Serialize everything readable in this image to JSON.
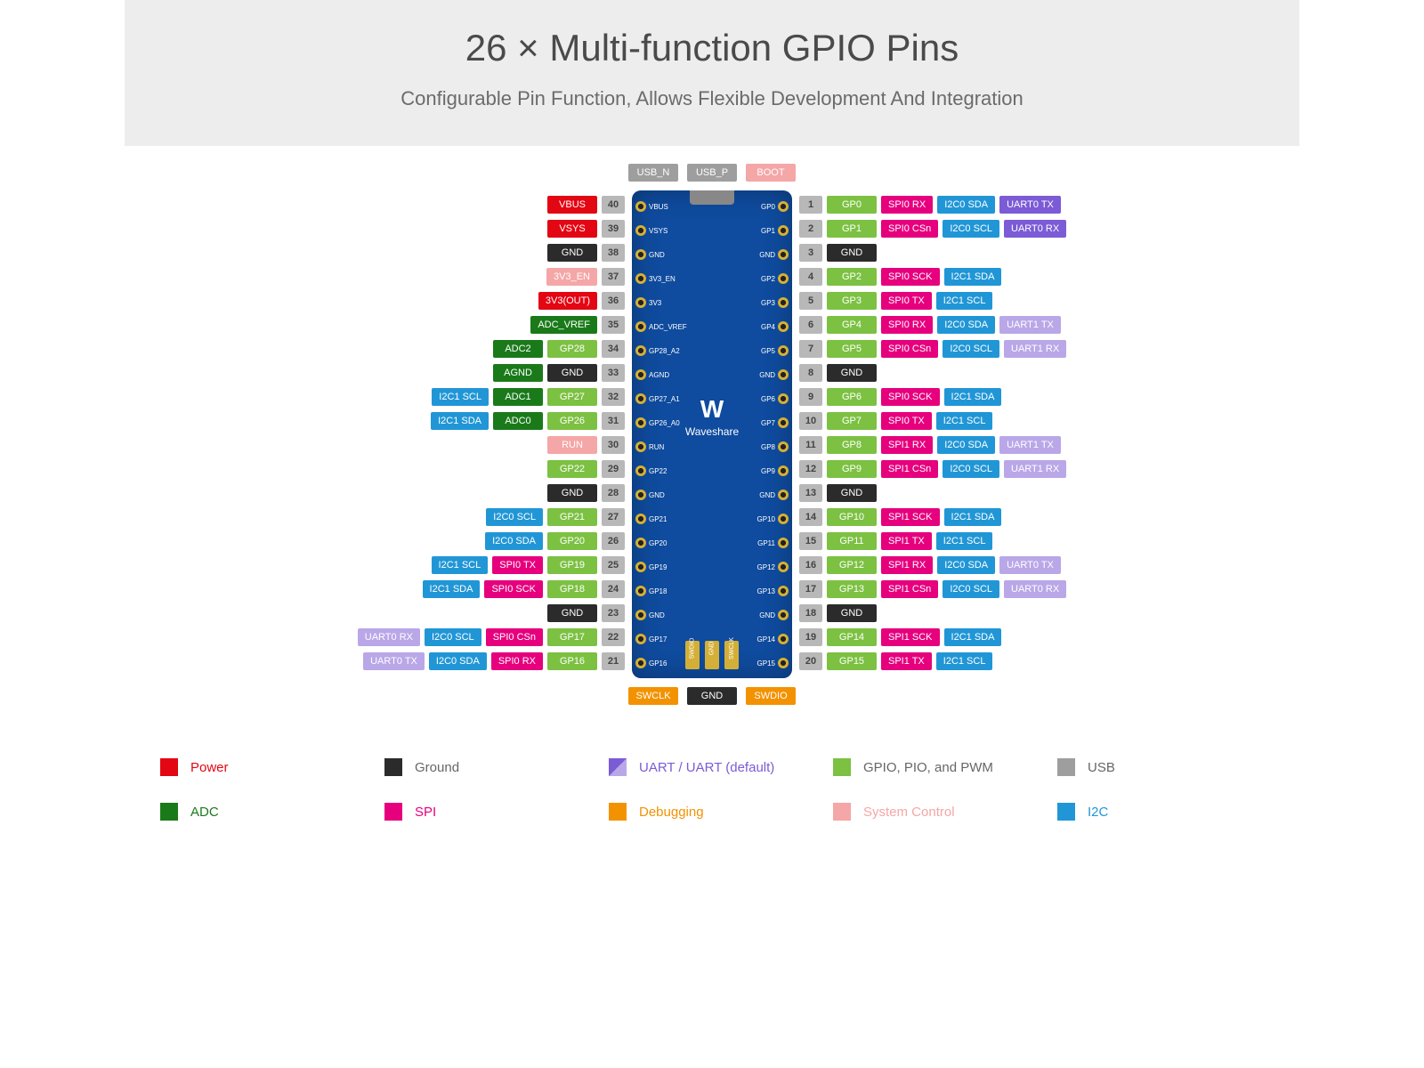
{
  "header": {
    "title": "26 × Multi-function GPIO Pins",
    "subtitle": "Configurable Pin Function, Allows Flexible Development And Integration"
  },
  "colors": {
    "power": "#e30613",
    "ground": "#2b2b2b",
    "uart": "#7b5bd6",
    "uart_default": "#b9a7e8",
    "gpio": "#7cc142",
    "usb": "#9e9e9e",
    "adc": "#1a7a1a",
    "spi": "#e6007e",
    "debugging": "#f39200",
    "system_control": "#f5a6a6",
    "i2c": "#2196d6",
    "pin_bg": "#b8b8b8",
    "board": "#0f4b9e"
  },
  "top_labels": [
    {
      "text": "USB_N",
      "color_key": "usb"
    },
    {
      "text": "USB_P",
      "color_key": "usb"
    },
    {
      "text": "BOOT",
      "color_key": "system_control"
    }
  ],
  "bottom_labels": [
    {
      "text": "SWCLK",
      "color_key": "debugging"
    },
    {
      "text": "GND",
      "color_key": "ground"
    },
    {
      "text": "SWDIO",
      "color_key": "debugging"
    }
  ],
  "board_labels": {
    "left": [
      "VBUS",
      "VSYS",
      "GND",
      "3V3_EN",
      "3V3",
      "ADC_VREF",
      "GP28_A2",
      "AGND",
      "GP27_A1",
      "GP26_A0",
      "RUN",
      "GP22",
      "GND",
      "GP21",
      "GP20",
      "GP19",
      "GP18",
      "GND",
      "GP17",
      "GP16"
    ],
    "right": [
      "GP0",
      "GP1",
      "GND",
      "GP2",
      "GP3",
      "GP4",
      "GP5",
      "GND",
      "GP6",
      "GP7",
      "GP8",
      "GP9",
      "GND",
      "GP10",
      "GP11",
      "GP12",
      "GP13",
      "GND",
      "GP14",
      "GP15"
    ],
    "logo": "W",
    "logo_text": "Waveshare",
    "bottom_pads": [
      "SWDIO",
      "GND",
      "SWCLK"
    ]
  },
  "left_rows": [
    {
      "num": "40",
      "tags": [
        {
          "t": "VBUS",
          "c": "power"
        }
      ]
    },
    {
      "num": "39",
      "tags": [
        {
          "t": "VSYS",
          "c": "power"
        }
      ]
    },
    {
      "num": "38",
      "tags": [
        {
          "t": "GND",
          "c": "ground"
        }
      ]
    },
    {
      "num": "37",
      "tags": [
        {
          "t": "3V3_EN",
          "c": "system_control"
        }
      ]
    },
    {
      "num": "36",
      "tags": [
        {
          "t": "3V3(OUT)",
          "c": "power"
        }
      ]
    },
    {
      "num": "35",
      "tags": [
        {
          "t": "ADC_VREF",
          "c": "adc"
        }
      ]
    },
    {
      "num": "34",
      "tags": [
        {
          "t": "ADC2",
          "c": "adc"
        },
        {
          "t": "GP28",
          "c": "gpio"
        }
      ]
    },
    {
      "num": "33",
      "tags": [
        {
          "t": "AGND",
          "c": "adc"
        },
        {
          "t": "GND",
          "c": "ground"
        }
      ]
    },
    {
      "num": "32",
      "tags": [
        {
          "t": "I2C1 SCL",
          "c": "i2c"
        },
        {
          "t": "ADC1",
          "c": "adc"
        },
        {
          "t": "GP27",
          "c": "gpio"
        }
      ]
    },
    {
      "num": "31",
      "tags": [
        {
          "t": "I2C1 SDA",
          "c": "i2c"
        },
        {
          "t": "ADC0",
          "c": "adc"
        },
        {
          "t": "GP26",
          "c": "gpio"
        }
      ]
    },
    {
      "num": "30",
      "tags": [
        {
          "t": "RUN",
          "c": "system_control"
        }
      ]
    },
    {
      "num": "29",
      "tags": [
        {
          "t": "GP22",
          "c": "gpio"
        }
      ]
    },
    {
      "num": "28",
      "tags": [
        {
          "t": "GND",
          "c": "ground"
        }
      ]
    },
    {
      "num": "27",
      "tags": [
        {
          "t": "I2C0 SCL",
          "c": "i2c"
        },
        {
          "t": "GP21",
          "c": "gpio"
        }
      ]
    },
    {
      "num": "26",
      "tags": [
        {
          "t": "I2C0 SDA",
          "c": "i2c"
        },
        {
          "t": "GP20",
          "c": "gpio"
        }
      ]
    },
    {
      "num": "25",
      "tags": [
        {
          "t": "I2C1 SCL",
          "c": "i2c"
        },
        {
          "t": "SPI0 TX",
          "c": "spi"
        },
        {
          "t": "GP19",
          "c": "gpio"
        }
      ]
    },
    {
      "num": "24",
      "tags": [
        {
          "t": "I2C1 SDA",
          "c": "i2c"
        },
        {
          "t": "SPI0 SCK",
          "c": "spi"
        },
        {
          "t": "GP18",
          "c": "gpio"
        }
      ]
    },
    {
      "num": "23",
      "tags": [
        {
          "t": "GND",
          "c": "ground"
        }
      ]
    },
    {
      "num": "22",
      "tags": [
        {
          "t": "UART0 RX",
          "c": "uart_default"
        },
        {
          "t": "I2C0 SCL",
          "c": "i2c"
        },
        {
          "t": "SPI0 CSn",
          "c": "spi"
        },
        {
          "t": "GP17",
          "c": "gpio"
        }
      ]
    },
    {
      "num": "21",
      "tags": [
        {
          "t": "UART0 TX",
          "c": "uart_default"
        },
        {
          "t": "I2C0 SDA",
          "c": "i2c"
        },
        {
          "t": "SPI0 RX",
          "c": "spi"
        },
        {
          "t": "GP16",
          "c": "gpio"
        }
      ]
    }
  ],
  "right_rows": [
    {
      "num": "1",
      "tags": [
        {
          "t": "GP0",
          "c": "gpio"
        },
        {
          "t": "SPI0 RX",
          "c": "spi"
        },
        {
          "t": "I2C0 SDA",
          "c": "i2c"
        },
        {
          "t": "UART0 TX",
          "c": "uart"
        }
      ]
    },
    {
      "num": "2",
      "tags": [
        {
          "t": "GP1",
          "c": "gpio"
        },
        {
          "t": "SPI0 CSn",
          "c": "spi"
        },
        {
          "t": "I2C0 SCL",
          "c": "i2c"
        },
        {
          "t": "UART0 RX",
          "c": "uart"
        }
      ]
    },
    {
      "num": "3",
      "tags": [
        {
          "t": "GND",
          "c": "ground"
        }
      ]
    },
    {
      "num": "4",
      "tags": [
        {
          "t": "GP2",
          "c": "gpio"
        },
        {
          "t": "SPI0 SCK",
          "c": "spi"
        },
        {
          "t": "I2C1 SDA",
          "c": "i2c"
        }
      ]
    },
    {
      "num": "5",
      "tags": [
        {
          "t": "GP3",
          "c": "gpio"
        },
        {
          "t": "SPI0 TX",
          "c": "spi"
        },
        {
          "t": "I2C1 SCL",
          "c": "i2c"
        }
      ]
    },
    {
      "num": "6",
      "tags": [
        {
          "t": "GP4",
          "c": "gpio"
        },
        {
          "t": "SPI0 RX",
          "c": "spi"
        },
        {
          "t": "I2C0 SDA",
          "c": "i2c"
        },
        {
          "t": "UART1 TX",
          "c": "uart_default"
        }
      ]
    },
    {
      "num": "7",
      "tags": [
        {
          "t": "GP5",
          "c": "gpio"
        },
        {
          "t": "SPI0 CSn",
          "c": "spi"
        },
        {
          "t": "I2C0 SCL",
          "c": "i2c"
        },
        {
          "t": "UART1 RX",
          "c": "uart_default"
        }
      ]
    },
    {
      "num": "8",
      "tags": [
        {
          "t": "GND",
          "c": "ground"
        }
      ]
    },
    {
      "num": "9",
      "tags": [
        {
          "t": "GP6",
          "c": "gpio"
        },
        {
          "t": "SPI0 SCK",
          "c": "spi"
        },
        {
          "t": "I2C1 SDA",
          "c": "i2c"
        }
      ]
    },
    {
      "num": "10",
      "tags": [
        {
          "t": "GP7",
          "c": "gpio"
        },
        {
          "t": "SPI0 TX",
          "c": "spi"
        },
        {
          "t": "I2C1 SCL",
          "c": "i2c"
        }
      ]
    },
    {
      "num": "11",
      "tags": [
        {
          "t": "GP8",
          "c": "gpio"
        },
        {
          "t": "SPI1 RX",
          "c": "spi"
        },
        {
          "t": "I2C0 SDA",
          "c": "i2c"
        },
        {
          "t": "UART1 TX",
          "c": "uart_default"
        }
      ]
    },
    {
      "num": "12",
      "tags": [
        {
          "t": "GP9",
          "c": "gpio"
        },
        {
          "t": "SPI1 CSn",
          "c": "spi"
        },
        {
          "t": "I2C0 SCL",
          "c": "i2c"
        },
        {
          "t": "UART1 RX",
          "c": "uart_default"
        }
      ]
    },
    {
      "num": "13",
      "tags": [
        {
          "t": "GND",
          "c": "ground"
        }
      ]
    },
    {
      "num": "14",
      "tags": [
        {
          "t": "GP10",
          "c": "gpio"
        },
        {
          "t": "SPI1 SCK",
          "c": "spi"
        },
        {
          "t": "I2C1 SDA",
          "c": "i2c"
        }
      ]
    },
    {
      "num": "15",
      "tags": [
        {
          "t": "GP11",
          "c": "gpio"
        },
        {
          "t": "SPI1 TX",
          "c": "spi"
        },
        {
          "t": "I2C1 SCL",
          "c": "i2c"
        }
      ]
    },
    {
      "num": "16",
      "tags": [
        {
          "t": "GP12",
          "c": "gpio"
        },
        {
          "t": "SPI1 RX",
          "c": "spi"
        },
        {
          "t": "I2C0 SDA",
          "c": "i2c"
        },
        {
          "t": "UART0 TX",
          "c": "uart_default"
        }
      ]
    },
    {
      "num": "17",
      "tags": [
        {
          "t": "GP13",
          "c": "gpio"
        },
        {
          "t": "SPI1 CSn",
          "c": "spi"
        },
        {
          "t": "I2C0 SCL",
          "c": "i2c"
        },
        {
          "t": "UART0 RX",
          "c": "uart_default"
        }
      ]
    },
    {
      "num": "18",
      "tags": [
        {
          "t": "GND",
          "c": "ground"
        }
      ]
    },
    {
      "num": "19",
      "tags": [
        {
          "t": "GP14",
          "c": "gpio"
        },
        {
          "t": "SPI1 SCK",
          "c": "spi"
        },
        {
          "t": "I2C1 SDA",
          "c": "i2c"
        }
      ]
    },
    {
      "num": "20",
      "tags": [
        {
          "t": "GP15",
          "c": "gpio"
        },
        {
          "t": "SPI1 TX",
          "c": "spi"
        },
        {
          "t": "I2C1 SCL",
          "c": "i2c"
        }
      ]
    }
  ],
  "legend": [
    {
      "text": "Power",
      "color_key": "power"
    },
    {
      "text": "Ground",
      "color_key": "ground"
    },
    {
      "text": "UART / UART (default)",
      "color_key": "uart_split"
    },
    {
      "text": "GPIO, PIO, and PWM",
      "color_key": "gpio"
    },
    {
      "text": "USB",
      "color_key": "usb"
    },
    {
      "text": "ADC",
      "color_key": "adc"
    },
    {
      "text": "SPI",
      "color_key": "spi"
    },
    {
      "text": "Debugging",
      "color_key": "debugging"
    },
    {
      "text": "System Control",
      "color_key": "system_control"
    },
    {
      "text": "I2C",
      "color_key": "i2c"
    }
  ]
}
